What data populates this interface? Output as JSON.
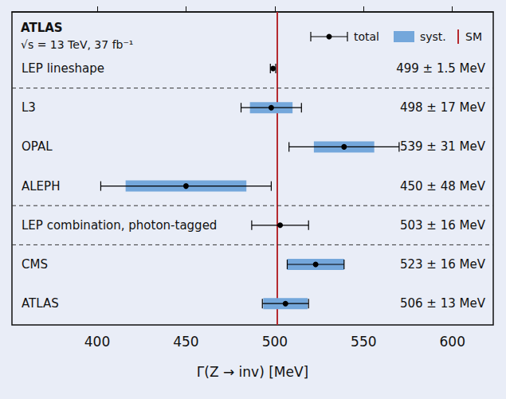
{
  "chart_data": {
    "type": "forest",
    "annotations": [
      "ATLAS",
      "√s = 13 TeV, 37 fb⁻¹"
    ],
    "xlabel": "Γ(Z → inv) [MeV]",
    "xlim": [
      352,
      623
    ],
    "xticks": [
      400,
      450,
      500,
      550,
      600
    ],
    "grid": false,
    "legend": "upper right",
    "total_name": "total",
    "syst_name": "syst.",
    "syst_color": "#74a7db",
    "color": "#000000",
    "reference": {
      "name": "SM",
      "value": 501.4,
      "color": "#b5282e"
    },
    "groups": [
      [
        {
          "label": "LEP lineshape",
          "value": 499,
          "total_error": 1.5,
          "syst_error": null,
          "value_label": "499 ± 1.5 MeV"
        }
      ],
      [
        {
          "label": "L3",
          "value": 498,
          "total_error": 17,
          "syst_error": 12,
          "value_label": "498 ± 17 MeV"
        },
        {
          "label": "OPAL",
          "value": 539,
          "total_error": 31,
          "syst_error": 17,
          "value_label": "539 ± 31 MeV"
        },
        {
          "label": "ALEPH",
          "value": 450,
          "total_error": 48,
          "syst_error": 34,
          "value_label": "450 ± 48 MeV"
        }
      ],
      [
        {
          "label": "LEP combination, photon-tagged",
          "value": 503,
          "total_error": 16,
          "syst_error": null,
          "value_label": "503 ± 16 MeV"
        }
      ],
      [
        {
          "label": "CMS",
          "value": 523,
          "total_error": 16,
          "syst_error": 16,
          "value_label": "523 ± 16 MeV"
        },
        {
          "label": "ATLAS",
          "value": 506,
          "total_error": 13,
          "syst_error": 12.5,
          "value_label": "506 ± 13 MeV"
        }
      ]
    ]
  }
}
